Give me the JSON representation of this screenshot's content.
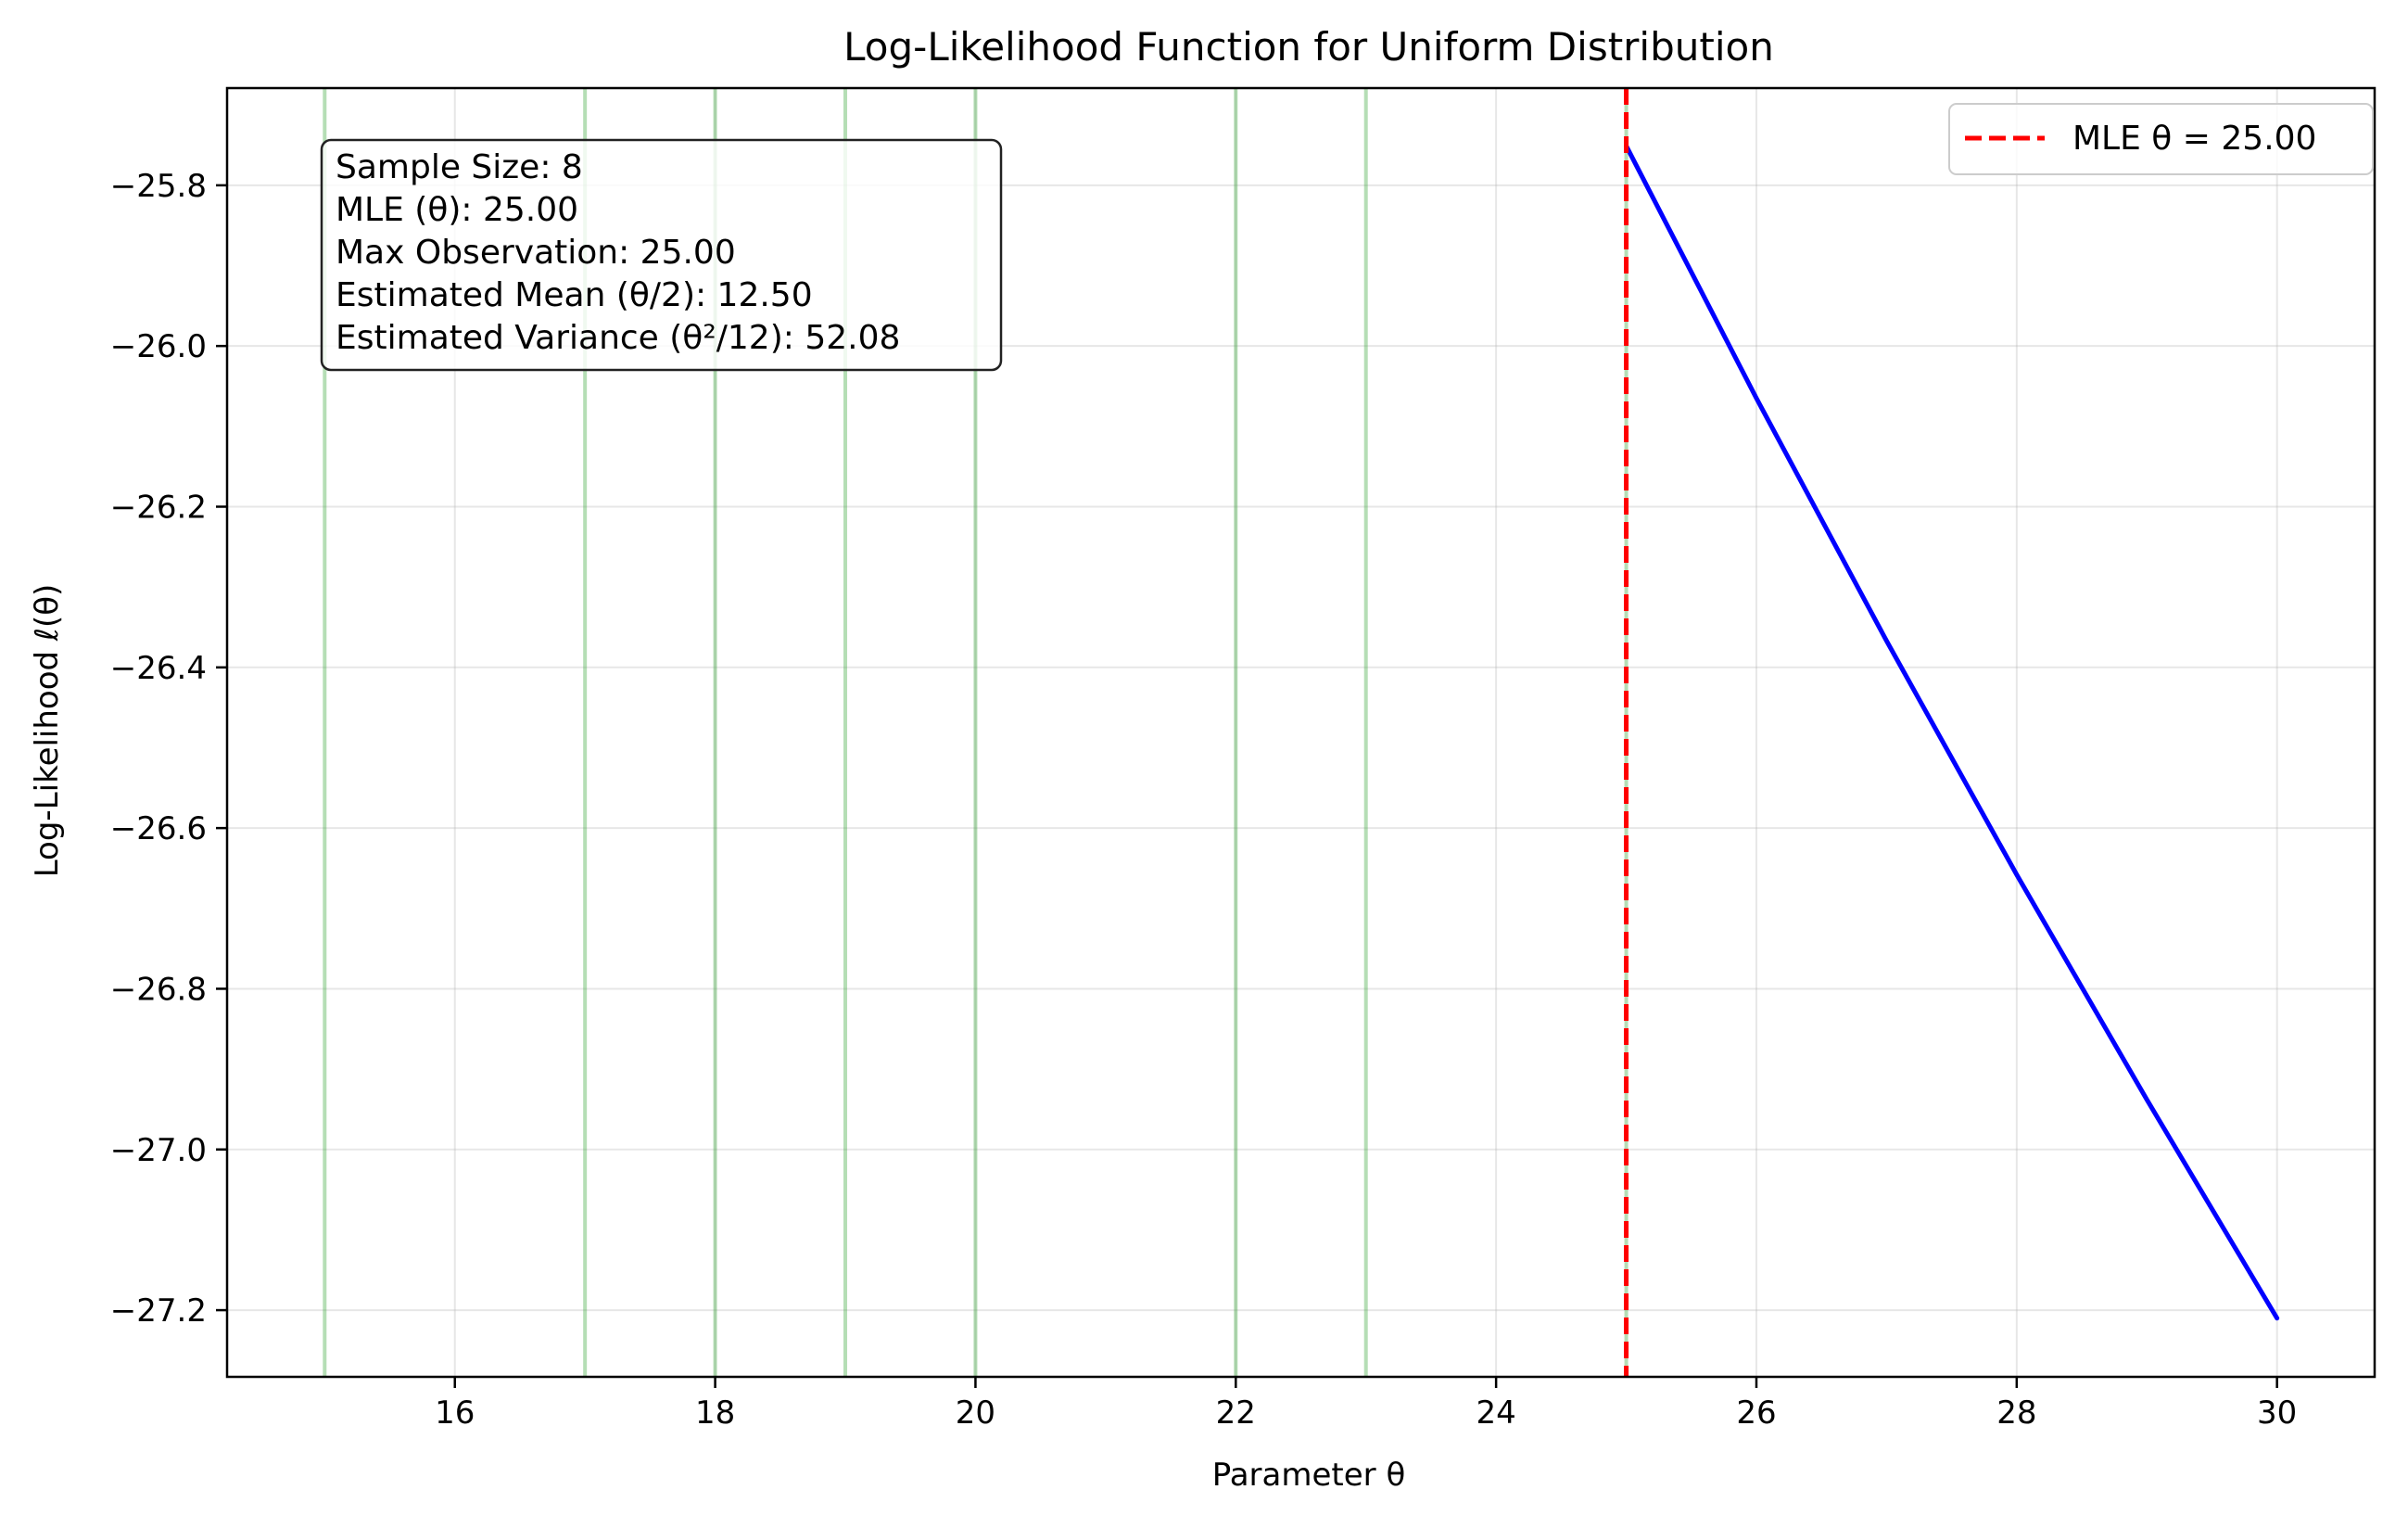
{
  "chart_data": {
    "type": "line",
    "title": "Log-Likelihood Function for Uniform Distribution",
    "xlabel": "Parameter θ",
    "ylabel": "Log-Likelihood ℓ(θ)",
    "xlim": [
      14.25,
      30.75
    ],
    "ylim": [
      -27.283,
      -25.679
    ],
    "xticks": [
      16,
      18,
      20,
      22,
      24,
      26,
      28,
      30
    ],
    "yticks": [
      -25.8,
      -26.0,
      -26.2,
      -26.4,
      -26.6,
      -26.8,
      -27.0,
      -27.2
    ],
    "xtick_labels": [
      "16",
      "18",
      "20",
      "22",
      "24",
      "26",
      "28",
      "30"
    ],
    "ytick_labels": [
      "−25.8",
      "−26.0",
      "−26.2",
      "−26.4",
      "−26.6",
      "−26.8",
      "−27.0",
      "−27.2"
    ],
    "grid": true,
    "series": [
      {
        "x": [
          25.0,
          26.0,
          27.0,
          28.0,
          29.0,
          30.0
        ],
        "y": [
          -25.751,
          -26.065,
          -26.367,
          -26.658,
          -26.938,
          -27.21
        ],
        "color": "#0000ff"
      }
    ],
    "observations": [
      15,
      17,
      18,
      19,
      20,
      22,
      23,
      25
    ],
    "observation_color": "#2ca02c",
    "mle": {
      "value": 25.0,
      "label": "MLE θ = 25.00",
      "color": "#ff0000"
    },
    "legend": {
      "placement": "top-right",
      "entries": [
        "MLE θ = 25.00"
      ]
    },
    "info_box": {
      "placement": "top-left",
      "lines": [
        "Sample Size: 8",
        "MLE (θ): 25.00",
        "Max Observation: 25.00",
        "Estimated Mean (θ/2): 12.50",
        "Estimated Variance (θ²/12): 52.08"
      ]
    }
  }
}
